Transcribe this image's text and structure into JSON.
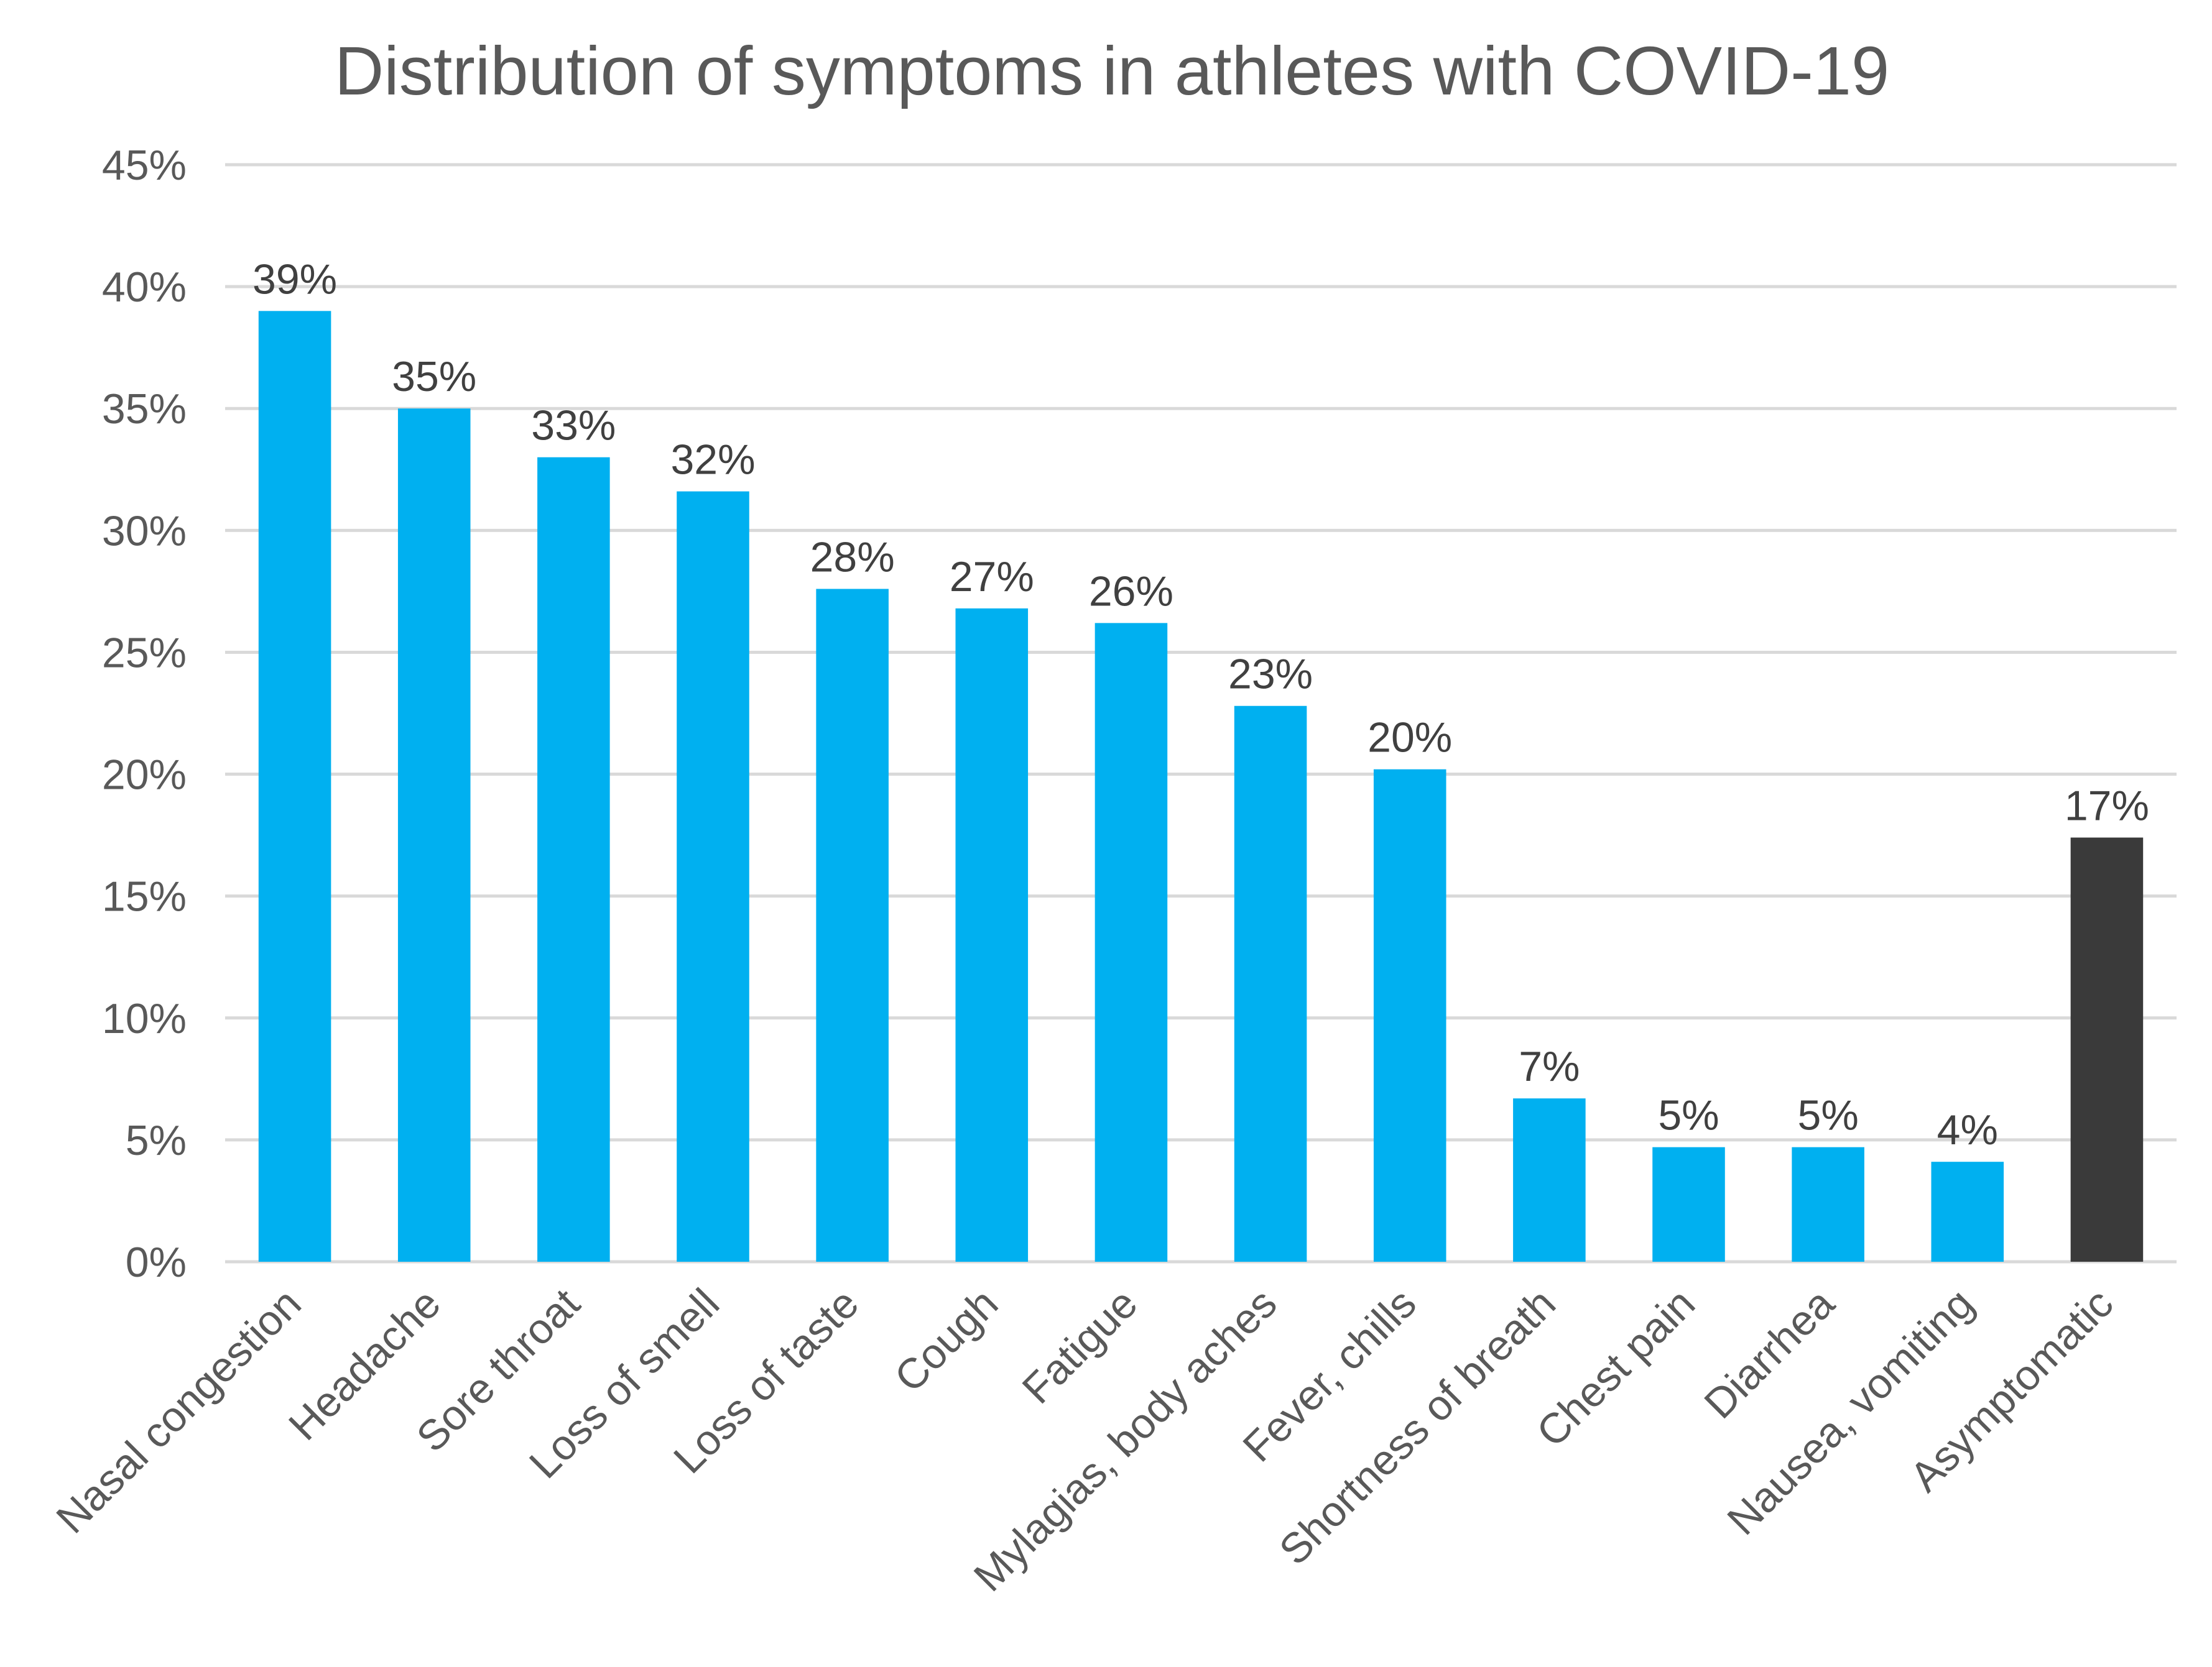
{
  "chart_data": {
    "type": "bar",
    "title": "Distribution of symptoms in athletes with COVID-19",
    "xlabel": "",
    "ylabel": "",
    "ylim": [
      0,
      45
    ],
    "ytick_values": [
      0,
      5,
      10,
      15,
      20,
      25,
      30,
      35,
      40,
      45
    ],
    "ytick_labels": [
      "0%",
      "5%",
      "10%",
      "15%",
      "20%",
      "25%",
      "30%",
      "35%",
      "40%",
      "45%"
    ],
    "grid": true,
    "legend": "none",
    "categories": [
      "Nasal congestion",
      "Headache",
      "Sore throat",
      "Loss of smell",
      "Loss of taste",
      "Cough",
      "Fatigue",
      "Mylagias, body aches",
      "Fever, chills",
      "Shortness of breath",
      "Chest pain",
      "Diarrhea",
      "Nausea, vomiting",
      "Asymptomatic"
    ],
    "values": [
      39,
      35,
      33,
      31.6,
      27.6,
      26.8,
      26.2,
      22.8,
      20.2,
      6.7,
      4.7,
      4.7,
      4.1,
      17.4
    ],
    "data_labels": [
      "39%",
      "35%",
      "33%",
      "32%",
      "28%",
      "27%",
      "26%",
      "23%",
      "20%",
      "7%",
      "5%",
      "5%",
      "4%",
      "17%"
    ],
    "bar_colors": [
      "#00b0f0",
      "#00b0f0",
      "#00b0f0",
      "#00b0f0",
      "#00b0f0",
      "#00b0f0",
      "#00b0f0",
      "#00b0f0",
      "#00b0f0",
      "#00b0f0",
      "#00b0f0",
      "#00b0f0",
      "#00b0f0",
      "#3a3a3a"
    ]
  }
}
